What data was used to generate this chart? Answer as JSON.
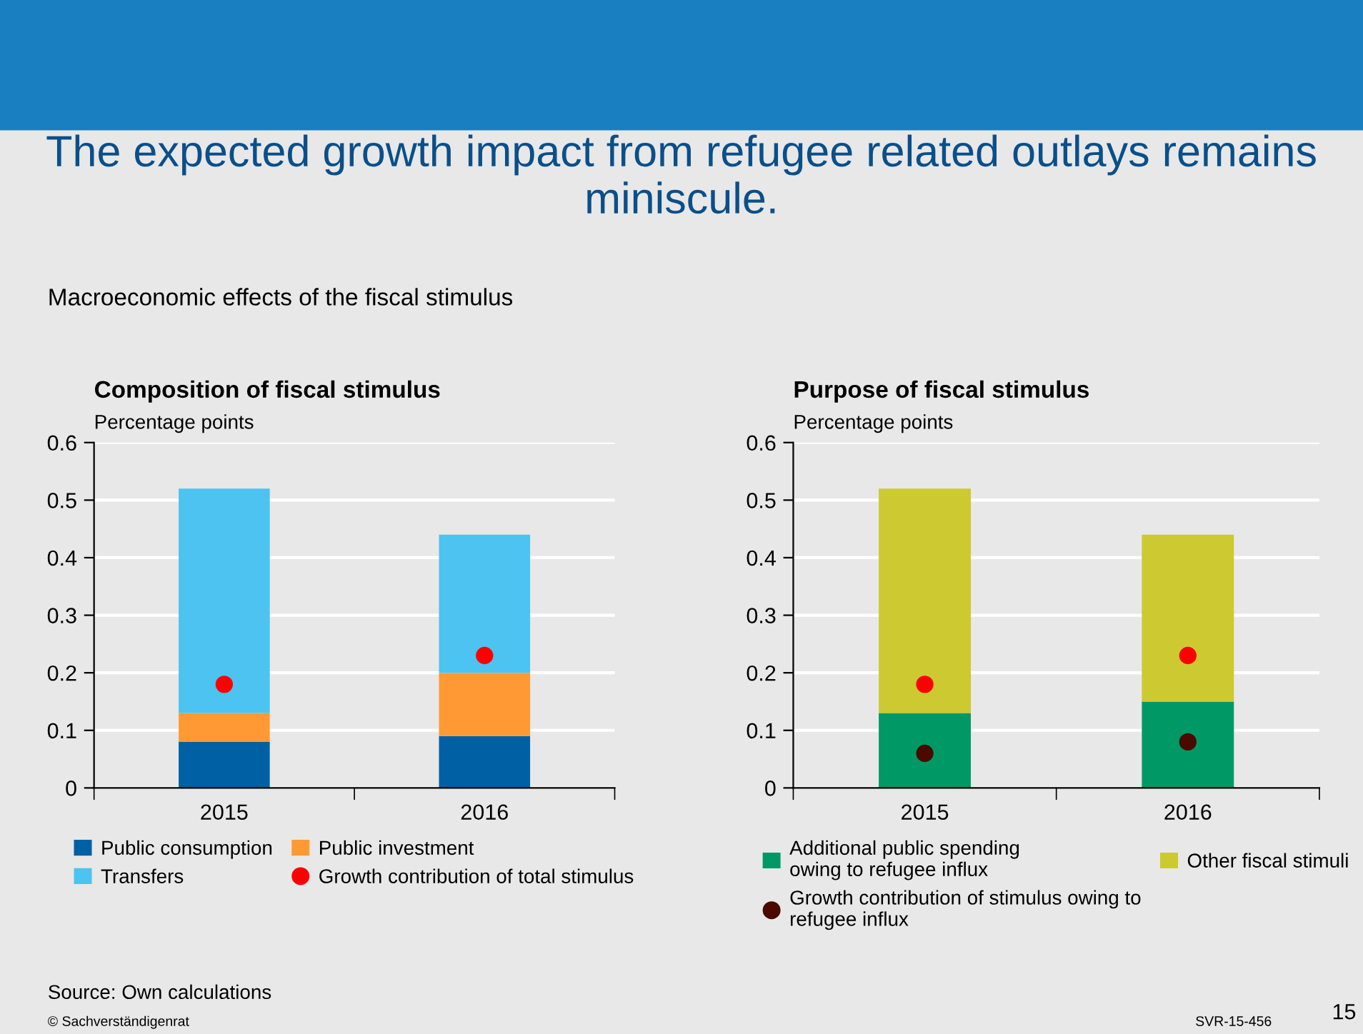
{
  "chart_data": [
    {
      "type": "bar",
      "title": "Composition of fiscal stimulus",
      "ylabel": "Percentage points",
      "categories": [
        "2015",
        "2016"
      ],
      "stacked": true,
      "series": [
        {
          "name": "Public consumption",
          "color": "#0060a4",
          "values": [
            0.08,
            0.09
          ]
        },
        {
          "name": "Public investment",
          "color": "#ff9933",
          "values": [
            0.05,
            0.11
          ]
        },
        {
          "name": "Transfers",
          "color": "#4cc3f0",
          "values": [
            0.39,
            0.24
          ]
        },
        {
          "name": "Growth contribution of total stimulus",
          "type": "scatter",
          "color": "#ff0000",
          "values": [
            0.18,
            0.23
          ]
        }
      ],
      "ylim": [
        0,
        0.6
      ],
      "yticks": [
        0,
        0.1,
        0.2,
        0.3,
        0.4,
        0.5,
        0.6
      ],
      "grid": "y",
      "legend": "bottom",
      "marker": "circle",
      "annotations": [
        "The expected growth impact from refugee related outlays remains miniscule.",
        "Macroeconomic effects of the fiscal stimulus",
        "Source: Own calculations",
        "© Sachverständigenrat",
        "SVR-15-456",
        "15"
      ]
    },
    {
      "type": "bar",
      "title": "Purpose of fiscal stimulus",
      "ylabel": "Percentage points",
      "categories": [
        "2015",
        "2016"
      ],
      "stacked": true,
      "series": [
        {
          "name": "Additional public spending owing to refugee influx",
          "color": "#009966",
          "values": [
            0.13,
            0.15
          ]
        },
        {
          "name": "Other fiscal stimuli",
          "color": "#cdc931",
          "values": [
            0.39,
            0.29
          ]
        },
        {
          "name": "Growth contribution of stimulus owing to refugee influx",
          "type": "scatter",
          "color": "#4a0a00",
          "values": [
            0.06,
            0.08
          ]
        },
        {
          "type": "scatter",
          "color": "#ff0000",
          "values": [
            0.18,
            0.23
          ]
        }
      ],
      "ylim": [
        0,
        0.6
      ],
      "yticks": [
        0,
        0.1,
        0.2,
        0.3,
        0.4,
        0.5,
        0.6
      ],
      "grid": "y",
      "legend": "bottom",
      "marker": "circle"
    }
  ]
}
